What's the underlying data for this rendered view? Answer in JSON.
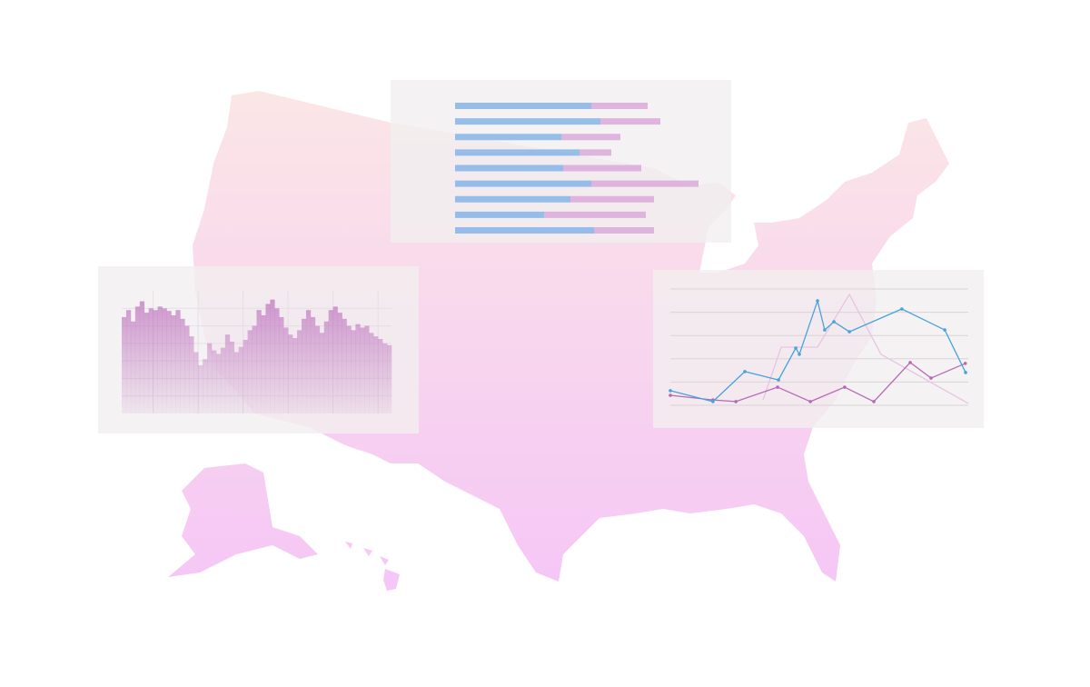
{
  "chart_data": [
    {
      "type": "histogram",
      "bins": [
        0,
        1,
        2,
        3,
        4,
        5,
        6,
        7,
        8,
        9,
        10,
        11,
        12,
        13,
        14,
        15,
        16,
        17,
        18,
        19,
        20,
        21,
        22,
        23,
        24,
        25,
        26,
        27,
        28,
        29,
        30,
        31,
        32,
        33,
        34,
        35,
        36,
        37,
        38,
        39,
        40,
        41,
        42,
        43,
        44,
        45,
        46,
        47,
        48,
        49,
        50,
        51,
        52,
        53,
        54,
        55,
        56,
        57,
        58,
        59,
        60
      ],
      "counts": [
        110,
        118,
        105,
        122,
        128,
        115,
        120,
        118,
        122,
        120,
        117,
        112,
        118,
        108,
        100,
        88,
        70,
        55,
        62,
        80,
        72,
        68,
        75,
        90,
        82,
        70,
        76,
        84,
        95,
        100,
        118,
        112,
        125,
        130,
        120,
        110,
        98,
        90,
        86,
        95,
        108,
        118,
        110,
        100,
        92,
        105,
        118,
        122,
        115,
        108,
        100,
        95,
        102,
        98,
        100,
        92,
        88,
        85,
        80,
        78
      ],
      "color": "#c37fc3",
      "xlim": [
        0,
        60
      ],
      "xticks": [
        7,
        17,
        27,
        37,
        47,
        57
      ],
      "ylim": [
        0,
        140
      ],
      "yticks": [
        20,
        40,
        60,
        80,
        100,
        120
      ],
      "grid": true
    },
    {
      "type": "bar",
      "orientation": "horizontal",
      "stacked": true,
      "categories": [
        null,
        null,
        null,
        null,
        null,
        null,
        null,
        null,
        null
      ],
      "series": [
        {
          "color": "#8cb8e8",
          "values": [
            150,
            160,
            117,
            137,
            119,
            150,
            127,
            98,
            153
          ]
        },
        {
          "color": "#dcaedc",
          "values": [
            62,
            66,
            65,
            35,
            86,
            118,
            92,
            112,
            66
          ]
        }
      ],
      "xlim": [
        0,
        300
      ]
    },
    {
      "type": "line",
      "series": [
        {
          "color": "#4aa3d8",
          "markers": true,
          "x": [
            0,
            14.3,
            25,
            36.3,
            42.1,
            43.3,
            49.4,
            51.8,
            54.9,
            60.1,
            77.7,
            92.1,
            99.1
          ],
          "values": [
            0.63,
            0.16,
            1.45,
            1.09,
            2.46,
            2.19,
            4.49,
            3.24,
            3.59,
            3.16,
            4.14,
            3.24,
            1.41
          ]
        },
        {
          "color": "#b66ab6",
          "markers": true,
          "x": [
            0,
            14.3,
            22,
            36,
            47,
            58.5,
            68.3,
            80.5,
            87.5,
            99
          ],
          "values": [
            0.43,
            0.23,
            0.16,
            0.78,
            0.16,
            0.78,
            0.16,
            1.84,
            1.17,
            1.8
          ]
        },
        {
          "color": "#e9c3e3",
          "markers": false,
          "x": [
            31.1,
            37.2,
            49.4,
            60.1,
            70.7,
            100
          ],
          "values": [
            0.23,
            2.5,
            2.5,
            4.77,
            2.19,
            0.08
          ]
        }
      ],
      "xlim": [
        0,
        100
      ],
      "ylim": [
        0,
        5
      ],
      "yticks": [
        0,
        1,
        2,
        3,
        4,
        5
      ],
      "grid": true
    }
  ]
}
